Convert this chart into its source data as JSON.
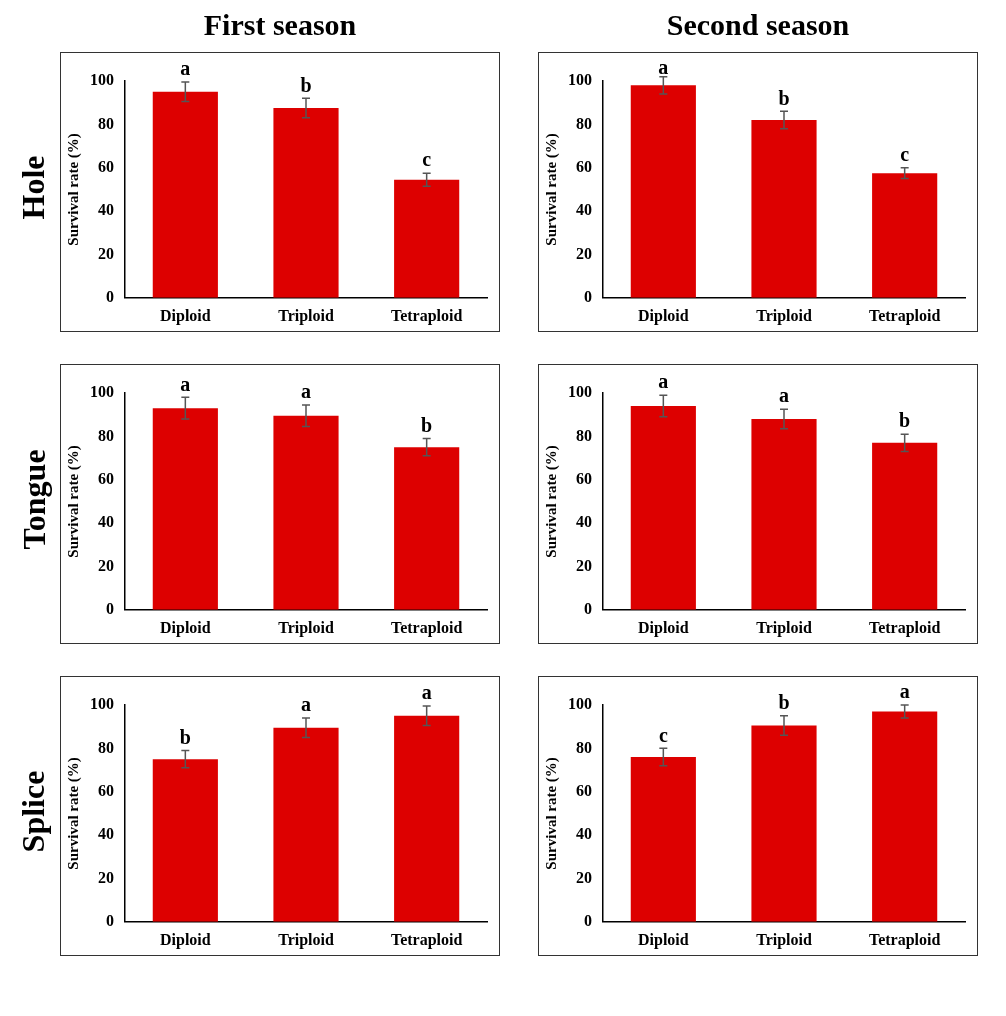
{
  "chart_data": [
    {
      "type": "bar",
      "title": "First season",
      "annotations": [
        "Hole",
        {
          "text": "a",
          "x": "Diploid",
          "y": 99.5
        },
        {
          "text": "b",
          "x": "Triploid",
          "y": 92
        },
        {
          "text": "c",
          "x": "Tetraploid",
          "y": 57.5
        }
      ],
      "categories": [
        "Diploid",
        "Triploid",
        "Tetraploid"
      ],
      "values": [
        95,
        87.5,
        54.5
      ],
      "errors": [
        4.5,
        4.5,
        3
      ],
      "color": "#dd0000",
      "ylabel": "Survival rate (%)",
      "ylim": [
        0,
        100
      ],
      "yticks": [
        0,
        20,
        40,
        60,
        80,
        100
      ]
    },
    {
      "type": "bar",
      "title": "Second season",
      "annotations": [
        {
          "text": "a",
          "x": "Diploid",
          "y": 100
        },
        {
          "text": "b",
          "x": "Triploid",
          "y": 86
        },
        {
          "text": "c",
          "x": "Tetraploid",
          "y": 60
        }
      ],
      "categories": [
        "Diploid",
        "Triploid",
        "Tetraploid"
      ],
      "values": [
        98,
        82,
        57.5
      ],
      "errors": [
        4,
        4,
        2.5
      ],
      "color": "#dd0000",
      "ylabel": "Survival rate (%)",
      "ylim": [
        0,
        100
      ],
      "yticks": [
        0,
        20,
        40,
        60,
        80,
        100
      ]
    },
    {
      "type": "bar",
      "annotations": [
        "Tongue",
        {
          "text": "a",
          "x": "Diploid",
          "y": 98
        },
        {
          "text": "a",
          "x": "Triploid",
          "y": 94.5
        },
        {
          "text": "b",
          "x": "Tetraploid",
          "y": 79
        }
      ],
      "categories": [
        "Diploid",
        "Triploid",
        "Tetraploid"
      ],
      "values": [
        93,
        89.5,
        75
      ],
      "errors": [
        5,
        5,
        4
      ],
      "color": "#dd0000",
      "ylabel": "Survival rate (%)",
      "ylim": [
        0,
        100
      ],
      "yticks": [
        0,
        20,
        40,
        60,
        80,
        100
      ]
    },
    {
      "type": "bar",
      "annotations": [
        {
          "text": "a",
          "x": "Diploid",
          "y": 99
        },
        {
          "text": "a",
          "x": "Triploid",
          "y": 92.5
        },
        {
          "text": "b",
          "x": "Tetraploid",
          "y": 81
        }
      ],
      "categories": [
        "Diploid",
        "Triploid",
        "Tetraploid"
      ],
      "values": [
        94,
        88,
        77
      ],
      "errors": [
        5,
        4.5,
        4
      ],
      "color": "#dd0000",
      "ylabel": "Survival rate (%)",
      "ylim": [
        0,
        100
      ],
      "yticks": [
        0,
        20,
        40,
        60,
        80,
        100
      ]
    },
    {
      "type": "bar",
      "annotations": [
        "Splice",
        {
          "text": "b",
          "x": "Diploid",
          "y": 79
        },
        {
          "text": "a",
          "x": "Triploid",
          "y": 94
        },
        {
          "text": "a",
          "x": "Tetraploid",
          "y": 99.5
        }
      ],
      "categories": [
        "Diploid",
        "Triploid",
        "Tetraploid"
      ],
      "values": [
        75,
        89.5,
        95
      ],
      "errors": [
        4,
        4.5,
        4.5
      ],
      "color": "#dd0000",
      "ylabel": "Survival rate (%)",
      "ylim": [
        0,
        100
      ],
      "yticks": [
        0,
        20,
        40,
        60,
        80,
        100
      ]
    },
    {
      "type": "bar",
      "annotations": [
        {
          "text": "c",
          "x": "Diploid",
          "y": 80
        },
        {
          "text": "b",
          "x": "Triploid",
          "y": 95
        },
        {
          "text": "a",
          "x": "Tetraploid",
          "y": 100
        }
      ],
      "categories": [
        "Diploid",
        "Triploid",
        "Tetraploid"
      ],
      "values": [
        76,
        90.5,
        97
      ],
      "errors": [
        4,
        4.5,
        3
      ],
      "color": "#dd0000",
      "ylabel": "Survival rate (%)",
      "ylim": [
        0,
        100
      ],
      "yticks": [
        0,
        20,
        40,
        60,
        80,
        100
      ]
    }
  ]
}
